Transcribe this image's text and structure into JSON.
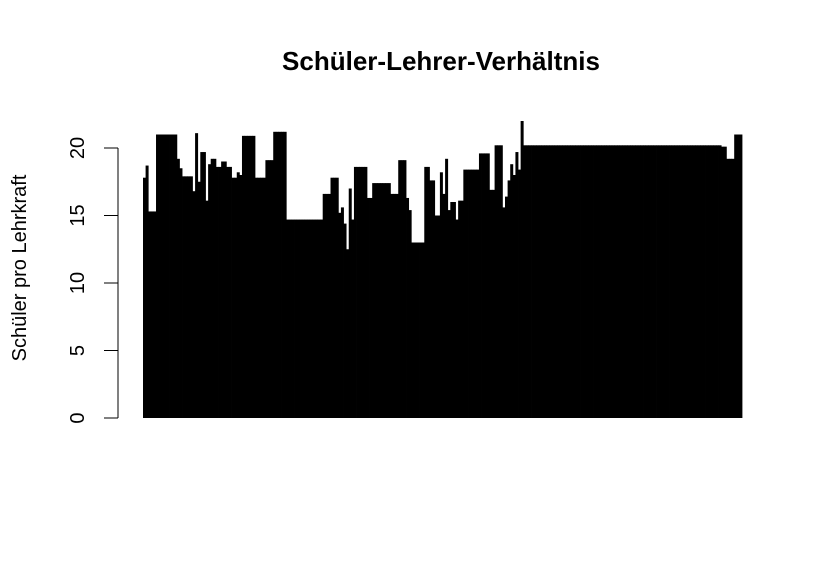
{
  "chart_data": {
    "type": "bar",
    "title": "Schüler-Lehrer-Verhältnis",
    "xlabel": "",
    "ylabel": "Schüler pro Lehrkraft",
    "ylim": [
      0,
      22
    ],
    "yticks": [
      0,
      5,
      10,
      15,
      20
    ],
    "grid": false,
    "legend": "none",
    "bar_color": "#000000",
    "values": [
      17.8,
      18.7,
      15.3,
      15.3,
      15.3,
      21.0,
      21.0,
      21.0,
      21.0,
      21.0,
      21.0,
      21.0,
      21.0,
      19.2,
      18.5,
      17.9,
      17.9,
      17.9,
      17.9,
      16.8,
      21.1,
      17.5,
      19.7,
      19.7,
      16.1,
      18.8,
      19.2,
      19.2,
      18.6,
      18.6,
      19.0,
      19.0,
      18.6,
      18.6,
      17.8,
      17.8,
      18.2,
      18.0,
      20.9,
      20.9,
      20.9,
      20.9,
      20.9,
      17.8,
      17.8,
      17.8,
      17.8,
      19.1,
      19.1,
      19.1,
      21.2,
      21.2,
      21.2,
      21.2,
      21.2,
      14.7,
      14.7,
      14.7,
      14.7,
      14.7,
      14.7,
      14.7,
      14.7,
      14.7,
      14.7,
      14.7,
      14.7,
      14.7,
      14.7,
      16.6,
      16.6,
      16.6,
      17.8,
      17.8,
      17.8,
      15.2,
      15.6,
      14.4,
      12.5,
      17.0,
      14.7,
      18.6,
      18.6,
      18.6,
      18.6,
      18.6,
      16.3,
      16.3,
      17.4,
      17.4,
      17.4,
      17.4,
      17.4,
      17.4,
      17.4,
      16.6,
      16.6,
      16.6,
      19.1,
      19.1,
      19.1,
      16.3,
      15.4,
      13.0,
      13.0,
      13.0,
      13.0,
      13.0,
      18.6,
      18.6,
      17.6,
      17.6,
      15.0,
      15.0,
      18.2,
      16.6,
      19.2,
      15.4,
      16.0,
      16.0,
      14.7,
      16.1,
      16.1,
      18.4,
      18.4,
      18.4,
      18.4,
      18.4,
      18.4,
      19.6,
      19.6,
      19.6,
      19.6,
      16.9,
      16.9,
      20.2,
      20.2,
      20.2,
      15.6,
      16.4,
      17.6,
      18.8,
      18.0,
      19.7,
      18.4,
      22.0,
      20.2,
      20.2,
      20.2,
      20.2,
      20.2,
      20.2,
      20.2,
      20.2,
      20.2,
      20.2,
      20.2,
      20.2,
      20.2,
      20.2,
      20.2,
      20.2,
      20.2,
      20.2,
      20.2,
      20.2,
      20.2,
      20.2,
      20.2,
      20.2,
      20.2,
      20.2,
      20.2,
      20.2,
      20.2,
      20.2,
      20.2,
      20.2,
      20.2,
      20.2,
      20.2,
      20.2,
      20.2,
      20.2,
      20.2,
      20.2,
      20.2,
      20.2,
      20.2,
      20.2,
      20.2,
      20.2,
      20.2,
      20.2,
      20.2,
      20.2,
      20.2,
      20.2,
      20.2,
      20.2,
      20.2,
      20.2,
      20.2,
      20.2,
      20.2,
      20.2,
      20.2,
      20.2,
      20.2,
      20.2,
      20.2,
      20.2,
      20.2,
      20.2,
      20.2,
      20.2,
      20.2,
      20.2,
      20.2,
      20.2,
      20.2,
      20.2,
      20.1,
      20.1,
      19.2,
      19.2,
      19.2,
      21.0,
      21.0,
      21.0
    ]
  }
}
